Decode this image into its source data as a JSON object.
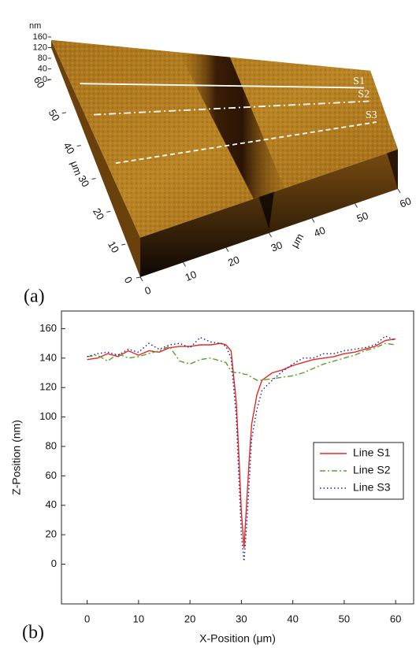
{
  "chart_data": [
    {
      "type": "surface3d",
      "label": "(a)",
      "x_axis": {
        "label": "μm",
        "lim": [
          0,
          60
        ],
        "ticks": [
          0,
          10,
          20,
          30,
          40,
          50,
          60
        ]
      },
      "y_axis": {
        "label": "μm",
        "lim": [
          0,
          60
        ],
        "ticks": [
          0,
          10,
          20,
          30,
          40,
          50,
          60
        ]
      },
      "z_axis": {
        "label": "nm",
        "lim": [
          0,
          160
        ],
        "ticks": [
          0,
          40,
          80,
          120,
          160
        ]
      },
      "profiles": [
        "S1",
        "S2",
        "S3"
      ]
    },
    {
      "type": "line",
      "label": "(b)",
      "xlabel": "X-Position (μm)",
      "ylabel": "Z-Position (nm)",
      "xlim": [
        -5,
        63.5
      ],
      "ylim": [
        -27,
        172
      ],
      "xticks": [
        0,
        10,
        20,
        30,
        40,
        50,
        60
      ],
      "yticks": [
        0,
        20,
        40,
        60,
        80,
        100,
        120,
        140,
        160
      ],
      "legend": "right",
      "x": [
        0,
        2,
        4,
        6,
        8,
        10,
        12,
        14,
        16,
        18,
        20,
        22,
        24,
        26,
        27,
        28,
        29,
        29.5,
        30,
        30.5,
        31,
        31.5,
        32,
        33,
        34,
        36,
        38,
        40,
        42,
        44,
        46,
        48,
        50,
        52,
        54,
        56,
        58,
        60
      ],
      "series": [
        {
          "name": "Line S1",
          "color": "#e8281e",
          "dash": "solid",
          "values": [
            139,
            140,
            143,
            141,
            145,
            142,
            145,
            144,
            147,
            148,
            148,
            149,
            149,
            150,
            149,
            145,
            110,
            75,
            35,
            11,
            40,
            70,
            95,
            115,
            125,
            130,
            132,
            135,
            137,
            139,
            140,
            141,
            143,
            144,
            146,
            148,
            152,
            153
          ]
        },
        {
          "name": "Line S2",
          "color": "#5aa02c",
          "dash": "dashdot",
          "values": [
            141,
            142,
            138,
            143,
            140,
            141,
            143,
            145,
            148,
            138,
            136,
            139,
            140,
            138,
            137,
            131,
            130,
            130,
            130,
            129,
            129,
            128,
            127,
            125,
            125,
            126,
            127,
            128,
            130,
            133,
            136,
            138,
            140,
            142,
            145,
            147,
            150,
            149
          ]
        },
        {
          "name": "Line S3",
          "color": "#1a1aaa",
          "dash": "dot",
          "values": [
            141,
            143,
            144,
            142,
            146,
            144,
            150,
            146,
            149,
            150,
            147,
            154,
            151,
            150,
            148,
            140,
            100,
            60,
            20,
            2,
            25,
            55,
            85,
            105,
            118,
            125,
            131,
            136,
            140,
            140,
            143,
            143,
            145,
            146,
            147,
            149,
            155,
            152
          ]
        }
      ]
    }
  ]
}
